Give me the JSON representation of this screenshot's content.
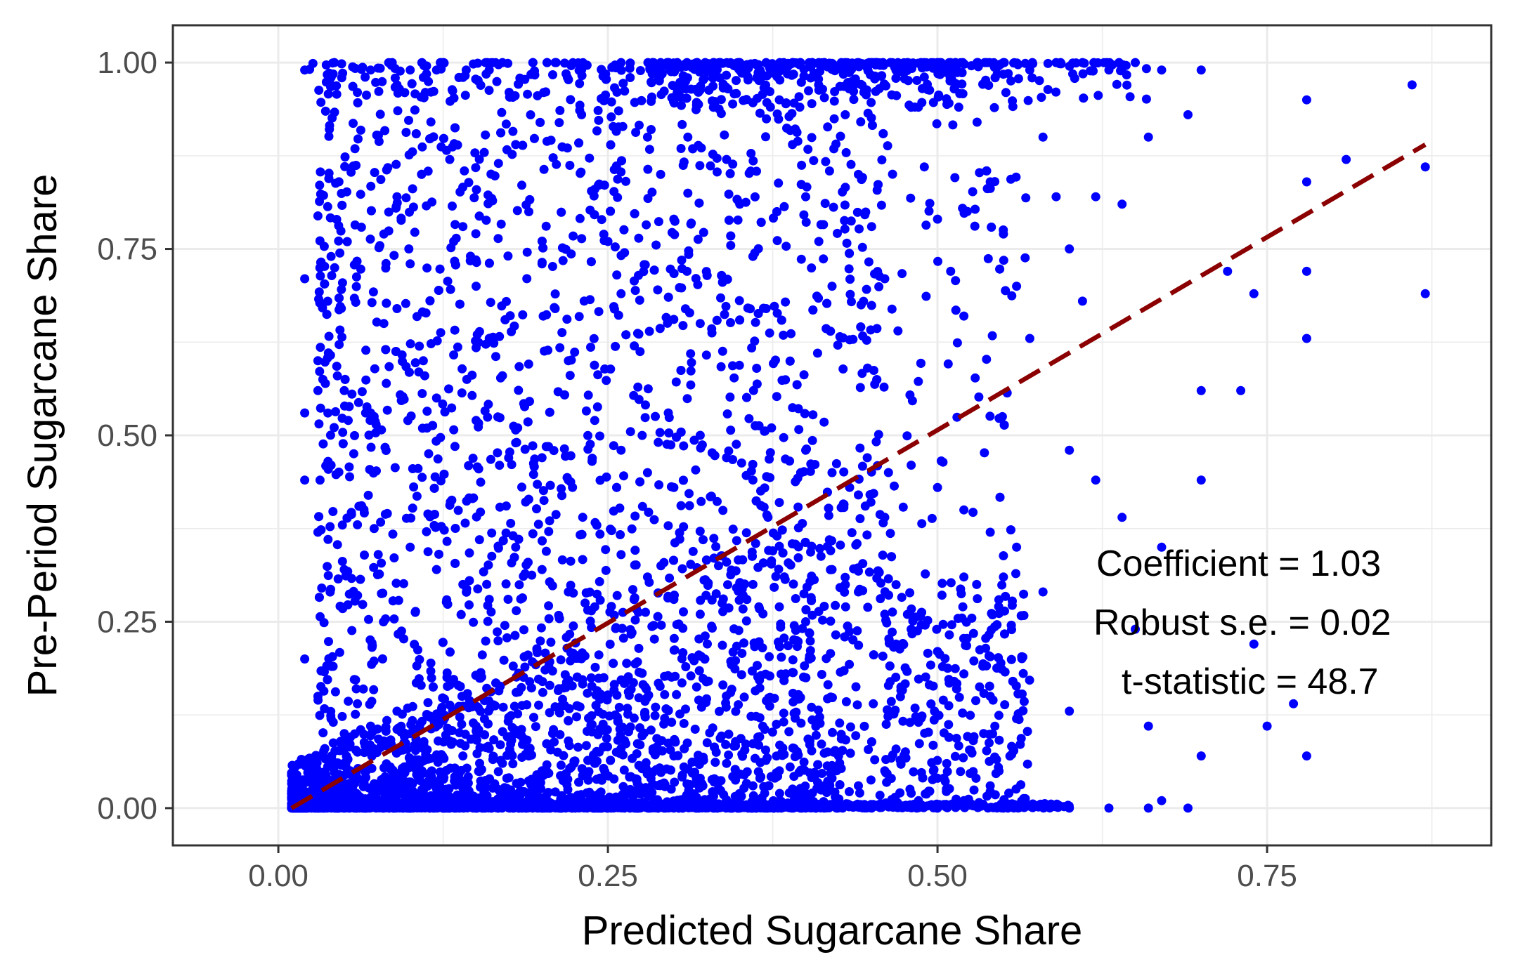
{
  "chart_data": {
    "type": "scatter",
    "xlabel": "Predicted Sugarcane Share",
    "ylabel": "Pre-Period Sugarcane Share",
    "xlim": [
      -0.08,
      0.92
    ],
    "ylim": [
      -0.05,
      1.05
    ],
    "x_ticks": [
      0.0,
      0.25,
      0.5,
      0.75
    ],
    "x_tick_labels": [
      "0.00",
      "0.25",
      "0.50",
      "0.75"
    ],
    "y_ticks": [
      0.0,
      0.25,
      0.5,
      0.75,
      1.0
    ],
    "y_tick_labels": [
      "0.00",
      "0.25",
      "0.50",
      "0.75",
      "1.00"
    ],
    "grid": true,
    "theme": "bw",
    "colors": {
      "points": "#0000ff",
      "fit_line": "#8b0000",
      "grid": "#ebebeb",
      "panel_border": "#333333"
    },
    "series": [
      {
        "kind": "points",
        "approx_count": 6000,
        "points": [
          [
            0.02,
            0.99
          ],
          [
            0.04,
            0.98
          ],
          [
            0.06,
            0.96
          ],
          [
            0.07,
            0.99
          ],
          [
            0.09,
            0.97
          ],
          [
            0.1,
            0.99
          ],
          [
            0.11,
            0.98
          ],
          [
            0.12,
            0.99
          ],
          [
            0.14,
            0.98
          ],
          [
            0.16,
            0.99
          ],
          [
            0.17,
            1.0
          ],
          [
            0.21,
            1.0
          ],
          [
            0.23,
            0.99
          ],
          [
            0.26,
            1.0
          ],
          [
            0.29,
            1.0
          ],
          [
            0.31,
            1.0
          ],
          [
            0.33,
            1.0
          ],
          [
            0.35,
            1.0
          ],
          [
            0.37,
            1.0
          ],
          [
            0.39,
            1.0
          ],
          [
            0.41,
            1.0
          ],
          [
            0.43,
            1.0
          ],
          [
            0.45,
            1.0
          ],
          [
            0.47,
            1.0
          ],
          [
            0.49,
            1.0
          ],
          [
            0.51,
            1.0
          ],
          [
            0.53,
            1.0
          ],
          [
            0.55,
            1.0
          ],
          [
            0.57,
            0.99
          ],
          [
            0.59,
            1.0
          ],
          [
            0.61,
            1.0
          ],
          [
            0.63,
            0.99
          ],
          [
            0.65,
            1.0
          ],
          [
            0.67,
            0.99
          ],
          [
            0.7,
            0.99
          ],
          [
            0.86,
            0.97
          ],
          [
            0.78,
            0.95
          ],
          [
            0.81,
            0.87
          ],
          [
            0.87,
            0.86
          ],
          [
            0.78,
            0.84
          ],
          [
            0.72,
            0.72
          ],
          [
            0.78,
            0.72
          ],
          [
            0.74,
            0.69
          ],
          [
            0.87,
            0.69
          ],
          [
            0.78,
            0.63
          ],
          [
            0.73,
            0.56
          ],
          [
            0.7,
            0.56
          ],
          [
            0.7,
            0.44
          ],
          [
            0.64,
            0.39
          ],
          [
            0.67,
            0.35
          ],
          [
            0.65,
            0.24
          ],
          [
            0.74,
            0.22
          ],
          [
            0.77,
            0.14
          ],
          [
            0.75,
            0.11
          ],
          [
            0.78,
            0.07
          ],
          [
            0.7,
            0.07
          ],
          [
            0.66,
            0.11
          ],
          [
            0.6,
            0.13
          ],
          [
            0.58,
            0.29
          ],
          [
            0.55,
            0.31
          ],
          [
            0.52,
            0.31
          ],
          [
            0.6,
            0.48
          ],
          [
            0.62,
            0.44
          ],
          [
            0.62,
            0.82
          ],
          [
            0.64,
            0.81
          ],
          [
            0.66,
            0.9
          ],
          [
            0.69,
            0.93
          ],
          [
            0.66,
            0.0
          ],
          [
            0.69,
            0.0
          ],
          [
            0.67,
            0.01
          ],
          [
            0.63,
            0.0
          ],
          [
            0.04,
            0.74
          ],
          [
            0.02,
            0.71
          ],
          [
            0.03,
            0.6
          ],
          [
            0.03,
            0.56
          ],
          [
            0.05,
            0.56
          ],
          [
            0.02,
            0.53
          ],
          [
            0.04,
            0.46
          ],
          [
            0.02,
            0.44
          ],
          [
            0.06,
            0.38
          ],
          [
            0.03,
            0.37
          ],
          [
            0.05,
            0.32
          ],
          [
            0.07,
            0.53
          ],
          [
            0.08,
            0.65
          ],
          [
            0.09,
            0.82
          ],
          [
            0.08,
            0.77
          ],
          [
            0.1,
            0.73
          ],
          [
            0.09,
            0.67
          ],
          [
            0.11,
            0.6
          ],
          [
            0.12,
            0.55
          ],
          [
            0.13,
            0.87
          ],
          [
            0.14,
            0.78
          ],
          [
            0.15,
            0.7
          ],
          [
            0.16,
            0.63
          ],
          [
            0.17,
            0.58
          ],
          [
            0.18,
            0.89
          ],
          [
            0.19,
            0.8
          ],
          [
            0.2,
            0.73
          ],
          [
            0.21,
            0.67
          ],
          [
            0.22,
            0.6
          ],
          [
            0.23,
            0.93
          ],
          [
            0.24,
            0.83
          ],
          [
            0.25,
            0.76
          ],
          [
            0.26,
            0.69
          ],
          [
            0.27,
            0.62
          ],
          [
            0.28,
            0.9
          ],
          [
            0.29,
            0.85
          ],
          [
            0.3,
            0.79
          ],
          [
            0.31,
            0.72
          ],
          [
            0.32,
            0.65
          ],
          [
            0.33,
            0.94
          ],
          [
            0.34,
            0.87
          ],
          [
            0.35,
            0.81
          ],
          [
            0.36,
            0.74
          ],
          [
            0.37,
            0.67
          ],
          [
            0.38,
            0.95
          ],
          [
            0.39,
            0.89
          ],
          [
            0.4,
            0.82
          ],
          [
            0.41,
            0.76
          ],
          [
            0.42,
            0.7
          ],
          [
            0.43,
            0.93
          ],
          [
            0.44,
            0.85
          ],
          [
            0.45,
            0.78
          ],
          [
            0.46,
            0.71
          ],
          [
            0.47,
            0.64
          ],
          [
            0.48,
            0.94
          ],
          [
            0.49,
            0.86
          ],
          [
            0.5,
            0.79
          ],
          [
            0.51,
            0.72
          ],
          [
            0.52,
            0.66
          ],
          [
            0.53,
            0.92
          ],
          [
            0.54,
            0.84
          ],
          [
            0.55,
            0.77
          ],
          [
            0.56,
            0.7
          ],
          [
            0.57,
            0.63
          ],
          [
            0.58,
            0.9
          ],
          [
            0.59,
            0.82
          ],
          [
            0.6,
            0.75
          ],
          [
            0.61,
            0.68
          ],
          [
            0.15,
            0.52
          ],
          [
            0.18,
            0.49
          ],
          [
            0.2,
            0.47
          ],
          [
            0.22,
            0.44
          ],
          [
            0.24,
            0.52
          ],
          [
            0.26,
            0.48
          ],
          [
            0.28,
            0.45
          ],
          [
            0.3,
            0.43
          ],
          [
            0.32,
            0.5
          ],
          [
            0.34,
            0.47
          ],
          [
            0.36,
            0.44
          ],
          [
            0.38,
            0.41
          ],
          [
            0.4,
            0.48
          ],
          [
            0.42,
            0.45
          ],
          [
            0.44,
            0.42
          ],
          [
            0.46,
            0.39
          ],
          [
            0.48,
            0.46
          ],
          [
            0.5,
            0.43
          ],
          [
            0.52,
            0.4
          ],
          [
            0.54,
            0.37
          ],
          [
            0.56,
            0.35
          ],
          [
            0.1,
            0.35
          ],
          [
            0.12,
            0.32
          ],
          [
            0.14,
            0.3
          ],
          [
            0.16,
            0.28
          ],
          [
            0.18,
            0.35
          ],
          [
            0.2,
            0.32
          ],
          [
            0.22,
            0.29
          ],
          [
            0.24,
            0.27
          ],
          [
            0.26,
            0.34
          ],
          [
            0.28,
            0.31
          ],
          [
            0.3,
            0.28
          ],
          [
            0.32,
            0.26
          ],
          [
            0.34,
            0.33
          ],
          [
            0.36,
            0.3
          ],
          [
            0.38,
            0.27
          ],
          [
            0.4,
            0.25
          ],
          [
            0.42,
            0.32
          ],
          [
            0.44,
            0.29
          ],
          [
            0.46,
            0.26
          ],
          [
            0.48,
            0.24
          ],
          [
            0.5,
            0.21
          ],
          [
            0.52,
            0.18
          ],
          [
            0.54,
            0.15
          ],
          [
            0.56,
            0.12
          ],
          [
            0.02,
            0.2
          ],
          [
            0.03,
            0.15
          ],
          [
            0.04,
            0.12
          ],
          [
            0.05,
            0.1
          ],
          [
            0.06,
            0.14
          ],
          [
            0.07,
            0.11
          ],
          [
            0.08,
            0.09
          ],
          [
            0.09,
            0.13
          ],
          [
            0.1,
            0.1
          ],
          [
            0.11,
            0.08
          ],
          [
            0.12,
            0.12
          ],
          [
            0.13,
            0.09
          ],
          [
            0.14,
            0.07
          ],
          [
            0.15,
            0.11
          ],
          [
            0.16,
            0.08
          ],
          [
            0.17,
            0.06
          ],
          [
            0.18,
            0.1
          ],
          [
            0.19,
            0.07
          ],
          [
            0.2,
            0.05
          ],
          [
            0.22,
            0.09
          ],
          [
            0.24,
            0.06
          ],
          [
            0.26,
            0.08
          ],
          [
            0.28,
            0.05
          ],
          [
            0.3,
            0.07
          ],
          [
            0.32,
            0.04
          ],
          [
            0.34,
            0.06
          ],
          [
            0.36,
            0.03
          ],
          [
            0.38,
            0.05
          ],
          [
            0.4,
            0.02
          ],
          [
            0.42,
            0.04
          ],
          [
            0.44,
            0.03
          ],
          [
            0.46,
            0.05
          ],
          [
            0.48,
            0.02
          ],
          [
            0.5,
            0.04
          ],
          [
            0.52,
            0.01
          ],
          [
            0.54,
            0.03
          ],
          [
            0.01,
            0.0
          ],
          [
            0.05,
            0.0
          ],
          [
            0.1,
            0.0
          ],
          [
            0.15,
            0.0
          ],
          [
            0.2,
            0.0
          ],
          [
            0.25,
            0.0
          ],
          [
            0.3,
            0.0
          ],
          [
            0.35,
            0.0
          ],
          [
            0.4,
            0.0
          ],
          [
            0.45,
            0.0
          ],
          [
            0.5,
            0.0
          ],
          [
            0.55,
            0.0
          ],
          [
            0.6,
            0.0
          ]
        ]
      },
      {
        "kind": "fit_line",
        "style": "dashed",
        "points": [
          [
            0.01,
            0.0
          ],
          [
            0.87,
            0.89
          ]
        ]
      }
    ],
    "annotations": [
      "Coefficient = 1.03",
      "Robust s.e. = 0.02",
      "t-statistic = 48.7"
    ]
  }
}
